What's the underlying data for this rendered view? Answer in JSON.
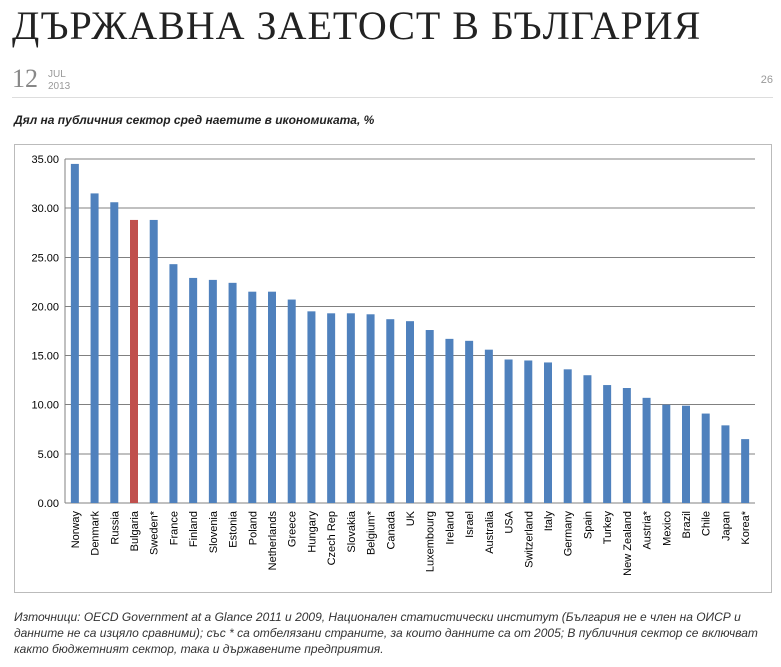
{
  "header": {
    "title": "ДЪРЖАВНА ЗАЕТОСТ В БЪЛГАРИЯ",
    "date_day": "12",
    "date_month": "JUL",
    "date_year": "2013",
    "comments": "26"
  },
  "chart_data": {
    "type": "bar",
    "title": "Дял на публичния сектор сред наетите в икономиката, %",
    "categories": [
      "Norway",
      "Denmark",
      "Russia",
      "Bulgaria",
      "Sweden*",
      "France",
      "Finland",
      "Slovenia",
      "Estonia",
      "Poland",
      "Netherlands",
      "Greece",
      "Hungary",
      "Czech Rep",
      "Slovakia",
      "Belgium*",
      "Canada",
      "UK",
      "Luxembourg",
      "Ireland",
      "Israel",
      "Australia",
      "USA",
      "Switzerland",
      "Italy",
      "Germany",
      "Spain",
      "Turkey",
      "New Zealand",
      "Austria*",
      "Mexico",
      "Brazil",
      "Chile",
      "Japan",
      "Korea*"
    ],
    "values": [
      34.5,
      31.5,
      30.6,
      28.8,
      28.8,
      24.3,
      22.9,
      22.7,
      22.4,
      21.5,
      21.5,
      20.7,
      19.5,
      19.3,
      19.3,
      19.2,
      18.7,
      18.5,
      17.6,
      16.7,
      16.5,
      15.6,
      14.6,
      14.5,
      14.3,
      13.6,
      13.0,
      12.0,
      11.7,
      10.7,
      10.0,
      9.9,
      9.1,
      7.9,
      6.5
    ],
    "highlight_category": "Bulgaria",
    "colors": {
      "bar": "#4f81bd",
      "highlight": "#c0504d",
      "grid": "#808080"
    },
    "ylim": [
      0,
      35
    ],
    "yticks": [
      "0.00",
      "5.00",
      "10.00",
      "15.00",
      "20.00",
      "25.00",
      "30.00",
      "35.00"
    ],
    "xlabel": "",
    "ylabel": "",
    "grid": true,
    "legend": "none"
  },
  "footnote": "Източници: OECD Government at a Glance 2011 и 2009, Национален статистически институт (България не е член на ОИСР и данните не са изцяло сравними); със * са отбелязани страните, за които данните са от 2005; В публичния сектор се включват както бюджетният сектор, така и държавените предприятия."
}
